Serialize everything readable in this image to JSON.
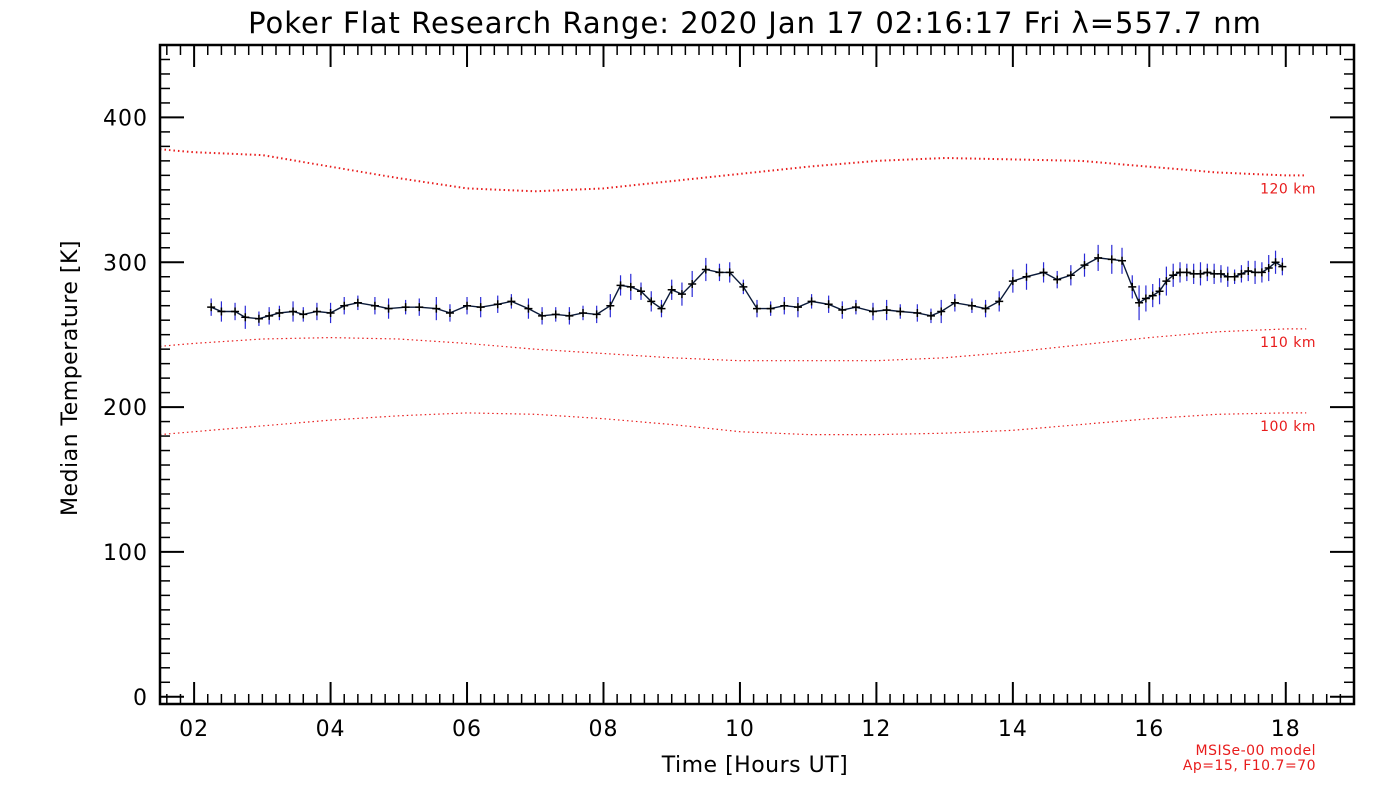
{
  "chart_data": {
    "type": "line",
    "title": "Poker Flat Research Range: 2020 Jan 17 02:16:17 Fri λ=557.7 nm",
    "xlabel": "Time [Hours UT]",
    "ylabel": "Median Temperature [K]",
    "xlim": [
      1.5,
      19
    ],
    "ylim": [
      -5,
      450
    ],
    "x_ticks": [
      2,
      4,
      6,
      8,
      10,
      12,
      14,
      16,
      18
    ],
    "x_tick_labels": [
      "02",
      "04",
      "06",
      "08",
      "10",
      "12",
      "14",
      "16",
      "18"
    ],
    "y_ticks": [
      0,
      100,
      200,
      300,
      400
    ],
    "y_tick_labels": [
      "0",
      "100",
      "200",
      "300",
      "400"
    ],
    "grid": false,
    "colors": {
      "measured": "#0b1a3a",
      "error_bars": "#2a2ad6",
      "model": "#e81c1c"
    },
    "series": [
      {
        "kind": "measured",
        "x": [
          2.25,
          2.4,
          2.6,
          2.75,
          2.95,
          3.1,
          3.25,
          3.45,
          3.6,
          3.8,
          4.0,
          4.2,
          4.4,
          4.65,
          4.85,
          5.1,
          5.3,
          5.55,
          5.75,
          6.0,
          6.2,
          6.45,
          6.65,
          6.9,
          7.1,
          7.3,
          7.5,
          7.7,
          7.9,
          8.1,
          8.25,
          8.4,
          8.55,
          8.7,
          8.85,
          9.0,
          9.15,
          9.3,
          9.5,
          9.7,
          9.85,
          10.05,
          10.25,
          10.45,
          10.65,
          10.85,
          11.05,
          11.3,
          11.5,
          11.7,
          11.95,
          12.15,
          12.35,
          12.6,
          12.8,
          12.95,
          13.15,
          13.4,
          13.6,
          13.8,
          14.0,
          14.2,
          14.45,
          14.65,
          14.85,
          15.05,
          15.25,
          15.45,
          15.6,
          15.75,
          15.85,
          15.95,
          16.05,
          16.15,
          16.25,
          16.35,
          16.45,
          16.55,
          16.65,
          16.75,
          16.85,
          16.95,
          17.05,
          17.15,
          17.25,
          17.35,
          17.45,
          17.55,
          17.65,
          17.75,
          17.85,
          17.95
        ],
        "y": [
          269,
          266,
          266,
          262,
          261,
          263,
          265,
          266,
          264,
          266,
          265,
          270,
          272,
          270,
          268,
          269,
          269,
          268,
          265,
          270,
          269,
          271,
          273,
          268,
          263,
          264,
          263,
          265,
          264,
          270,
          284,
          283,
          280,
          273,
          268,
          281,
          278,
          285,
          295,
          293,
          293,
          283,
          268,
          268,
          270,
          269,
          273,
          271,
          267,
          269,
          266,
          267,
          266,
          265,
          263,
          266,
          272,
          270,
          268,
          273,
          287,
          290,
          293,
          288,
          291,
          298,
          303,
          302,
          301,
          283,
          272,
          275,
          277,
          280,
          287,
          291,
          293,
          293,
          292,
          292,
          293,
          292,
          292,
          290,
          290,
          292,
          294,
          293,
          293,
          296,
          300,
          297
        ],
        "errors": [
          6,
          7,
          6,
          8,
          5,
          6,
          5,
          7,
          5,
          6,
          7,
          6,
          5,
          6,
          7,
          5,
          6,
          8,
          6,
          6,
          7,
          6,
          5,
          7,
          6,
          5,
          6,
          5,
          6,
          8,
          7,
          9,
          6,
          7,
          6,
          7,
          8,
          9,
          8,
          6,
          7,
          5,
          6,
          5,
          6,
          7,
          5,
          6,
          6,
          5,
          6,
          7,
          5,
          6,
          5,
          8,
          6,
          5,
          6,
          7,
          8,
          9,
          7,
          6,
          7,
          8,
          9,
          10,
          9,
          8,
          12,
          9,
          8,
          9,
          10,
          8,
          7,
          6,
          7,
          8,
          6,
          7,
          6,
          7,
          5,
          6,
          7,
          8,
          7,
          9,
          8,
          6
        ]
      },
      {
        "kind": "model",
        "name": "120 km",
        "x": [
          1.5,
          2.0,
          3.0,
          4.0,
          5.0,
          6.0,
          7.0,
          8.0,
          9.0,
          10.0,
          11.0,
          12.0,
          13.0,
          14.0,
          15.0,
          16.0,
          17.0,
          18.0,
          18.3
        ],
        "y": [
          378,
          376,
          374,
          366,
          358,
          351,
          349,
          351,
          356,
          361,
          366,
          370,
          372,
          371,
          370,
          366,
          362,
          360,
          360
        ]
      },
      {
        "kind": "model",
        "name": "110 km",
        "x": [
          1.5,
          2.0,
          3.0,
          4.0,
          5.0,
          6.0,
          7.0,
          8.0,
          9.0,
          10.0,
          11.0,
          12.0,
          13.0,
          14.0,
          15.0,
          16.0,
          17.0,
          18.0,
          18.3
        ],
        "y": [
          242,
          244,
          247,
          248,
          247,
          244,
          240,
          237,
          234,
          232,
          232,
          232,
          234,
          238,
          243,
          248,
          252,
          254,
          254
        ]
      },
      {
        "kind": "model",
        "name": "100 km",
        "x": [
          1.5,
          2.0,
          3.0,
          4.0,
          5.0,
          6.0,
          7.0,
          8.0,
          9.0,
          10.0,
          11.0,
          12.0,
          13.0,
          14.0,
          15.0,
          16.0,
          17.0,
          18.0,
          18.3
        ],
        "y": [
          181,
          183,
          187,
          191,
          194,
          196,
          195,
          192,
          188,
          183,
          181,
          181,
          182,
          184,
          188,
          192,
          195,
          196,
          196
        ]
      }
    ],
    "annotations": {
      "model_line1": "MSISe-00 model",
      "model_line2": "Ap=15, F10.7=70"
    }
  }
}
